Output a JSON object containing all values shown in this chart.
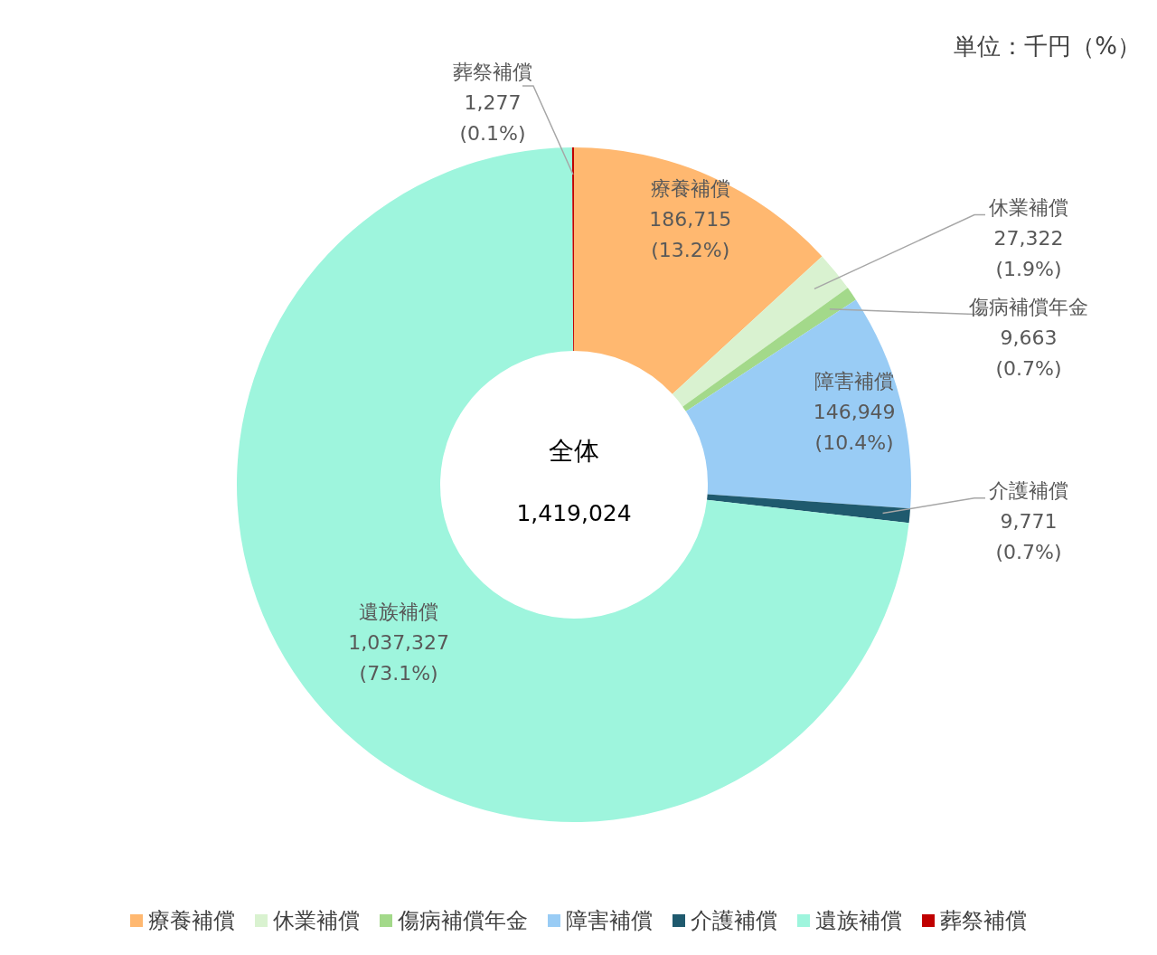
{
  "chart_data": {
    "type": "donut",
    "categories": [
      "療養補償",
      "休業補償",
      "傷病補償年金",
      "障害補償",
      "介護補償",
      "遺族補償",
      "葬祭補償"
    ],
    "values": [
      186715,
      27322,
      9663,
      146949,
      9771,
      1037327,
      1277
    ],
    "colors": [
      "#ffb870",
      "#d9f2d0",
      "#a3d98a",
      "#99ccf5",
      "#1f5a6e",
      "#9ef5dd",
      "#c00000"
    ],
    "value_labels": [
      "186,715\n(13.2%)",
      "27,322\n(1.9%)",
      "9,663\n(0.7%)",
      "146,949\n(10.4%)",
      "9,771\n(0.7%)",
      "1,037,327\n(73.1%)",
      "1,277\n(0.1%)"
    ],
    "annotations": [
      "単位：千円（%）",
      "全体",
      "1,419,024"
    ],
    "legend": "bottom"
  }
}
